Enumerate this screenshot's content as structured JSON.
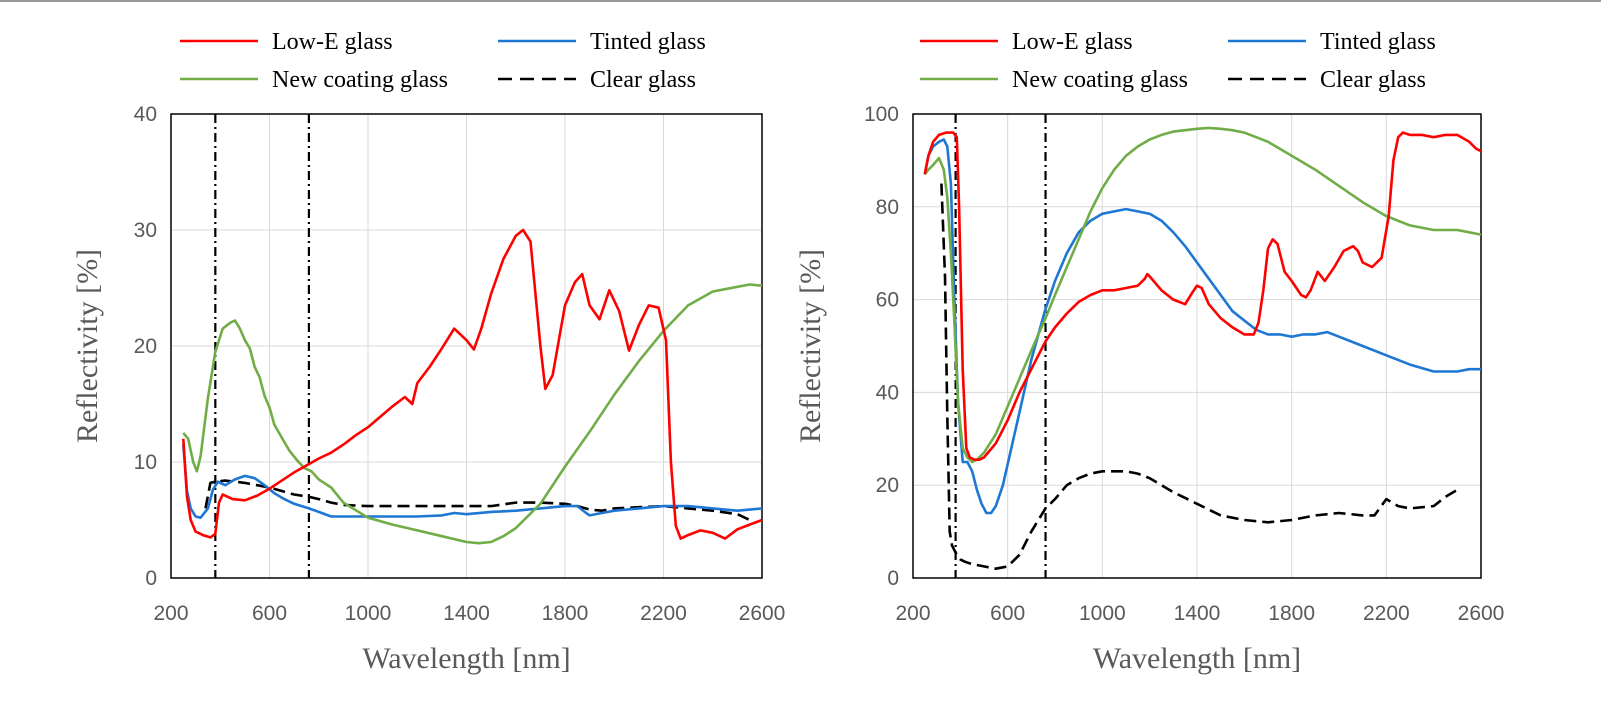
{
  "chart_data": [
    {
      "type": "line",
      "xlabel": "Wavelength [nm]",
      "ylabel": "Reflectivity [%]",
      "xlim": [
        200,
        2600
      ],
      "ylim": [
        0,
        40
      ],
      "xticks": [
        "200",
        "600",
        "1000",
        "1400",
        "1800",
        "2200",
        "2600"
      ],
      "yticks": [
        "0",
        "10",
        "20",
        "30",
        "40"
      ],
      "grid": true,
      "legend_position": "top",
      "reference_lines_x": [
        380,
        760
      ],
      "series": [
        {
          "name": "Low-E glass",
          "color": "#ff0000",
          "dash": "solid",
          "x": [
            250,
            265,
            280,
            300,
            330,
            360,
            380,
            395,
            410,
            450,
            500,
            550,
            600,
            650,
            700,
            750,
            800,
            850,
            900,
            950,
            1000,
            1050,
            1100,
            1150,
            1180,
            1200,
            1250,
            1300,
            1350,
            1400,
            1430,
            1460,
            1500,
            1550,
            1600,
            1630,
            1660,
            1700,
            1720,
            1750,
            1800,
            1840,
            1870,
            1900,
            1940,
            1980,
            2020,
            2060,
            2100,
            2140,
            2180,
            2210,
            2230,
            2250,
            2270,
            2300,
            2350,
            2400,
            2450,
            2500,
            2550,
            2600
          ],
          "y": [
            12,
            7,
            5,
            4,
            3.7,
            3.5,
            3.8,
            6.5,
            7.2,
            6.8,
            6.7,
            7.1,
            7.7,
            8.4,
            9.1,
            9.7,
            10.3,
            10.8,
            11.5,
            12.3,
            13,
            13.9,
            14.8,
            15.6,
            15,
            16.8,
            18.2,
            19.8,
            21.5,
            20.5,
            19.7,
            21.5,
            24.5,
            27.5,
            29.5,
            30,
            29,
            20,
            16.3,
            17.5,
            23.5,
            25.5,
            26.2,
            23.5,
            22.3,
            24.8,
            23,
            19.6,
            21.8,
            23.5,
            23.3,
            20.5,
            10,
            4.5,
            3.4,
            3.7,
            4.1,
            3.9,
            3.4,
            4.2,
            4.6,
            5
          ]
        },
        {
          "name": "Tinted glass",
          "color": "#1f77d4",
          "dash": "solid",
          "x": [
            250,
            265,
            280,
            300,
            320,
            350,
            370,
            390,
            420,
            460,
            500,
            540,
            580,
            620,
            660,
            700,
            760,
            800,
            850,
            900,
            1000,
            1100,
            1200,
            1300,
            1350,
            1400,
            1500,
            1600,
            1700,
            1800,
            1850,
            1880,
            1900,
            1950,
            2000,
            2100,
            2200,
            2300,
            2400,
            2500,
            2550,
            2600
          ],
          "y": [
            11.5,
            7.5,
            6,
            5.3,
            5.2,
            6,
            7.6,
            8.3,
            8,
            8.5,
            8.8,
            8.6,
            8,
            7.3,
            6.8,
            6.4,
            6,
            5.7,
            5.3,
            5.3,
            5.3,
            5.3,
            5.3,
            5.4,
            5.6,
            5.5,
            5.7,
            5.8,
            6,
            6.2,
            6.2,
            5.7,
            5.4,
            5.6,
            5.8,
            6,
            6.2,
            6.2,
            6,
            5.8,
            5.9,
            6
          ]
        },
        {
          "name": "New coating glass",
          "color": "#70ad47",
          "dash": "solid",
          "x": [
            250,
            270,
            290,
            305,
            320,
            350,
            380,
            410,
            440,
            460,
            480,
            500,
            520,
            540,
            560,
            580,
            600,
            620,
            650,
            680,
            710,
            740,
            770,
            800,
            850,
            900,
            1000,
            1100,
            1200,
            1300,
            1400,
            1450,
            1500,
            1550,
            1600,
            1700,
            1800,
            1900,
            2000,
            2100,
            2200,
            2300,
            2400,
            2500,
            2550,
            2600
          ],
          "y": [
            12.5,
            12,
            10,
            9.2,
            10.5,
            15.5,
            19.5,
            21.5,
            22,
            22.2,
            21.5,
            20.5,
            19.8,
            18.2,
            17.3,
            15.7,
            14.7,
            13.2,
            12.1,
            11,
            10.2,
            9.5,
            9.2,
            8.5,
            7.8,
            6.5,
            5.2,
            4.6,
            4.1,
            3.6,
            3.1,
            3,
            3.1,
            3.6,
            4.3,
            6.4,
            9.6,
            12.6,
            15.8,
            18.7,
            21.3,
            23.5,
            24.7,
            25.1,
            25.3,
            25.2
          ]
        },
        {
          "name": "Clear glass",
          "color": "#000000",
          "dash": "dashed",
          "x": [
            340,
            360,
            380,
            420,
            460,
            500,
            550,
            600,
            650,
            700,
            760,
            800,
            850,
            900,
            1000,
            1100,
            1200,
            1300,
            1400,
            1500,
            1600,
            1700,
            1800,
            1850,
            1900,
            1950,
            2000,
            2100,
            2200,
            2300,
            2400,
            2500,
            2550
          ],
          "y": [
            6,
            8.2,
            8.3,
            8.4,
            8.3,
            8.2,
            8,
            7.8,
            7.5,
            7.2,
            7,
            6.8,
            6.5,
            6.3,
            6.2,
            6.2,
            6.2,
            6.2,
            6.2,
            6.2,
            6.5,
            6.5,
            6.4,
            6.2,
            5.9,
            5.8,
            6,
            6.1,
            6.2,
            6,
            5.8,
            5.5,
            5
          ]
        }
      ]
    },
    {
      "type": "line",
      "xlabel": "Wavelength [nm]",
      "ylabel": "Reflectivity [%]",
      "xlim": [
        200,
        2600
      ],
      "ylim": [
        0,
        100
      ],
      "xticks": [
        "200",
        "600",
        "1000",
        "1400",
        "1800",
        "2200",
        "2600"
      ],
      "yticks": [
        "0",
        "20",
        "40",
        "60",
        "80",
        "100"
      ],
      "grid": true,
      "legend_position": "top",
      "reference_lines_x": [
        380,
        760
      ],
      "series": [
        {
          "name": "Low-E glass",
          "color": "#ff0000",
          "dash": "solid",
          "x": [
            250,
            265,
            285,
            310,
            340,
            370,
            385,
            395,
            410,
            425,
            440,
            460,
            480,
            500,
            550,
            600,
            650,
            700,
            760,
            800,
            850,
            900,
            950,
            1000,
            1050,
            1100,
            1150,
            1180,
            1190,
            1200,
            1250,
            1300,
            1350,
            1380,
            1400,
            1420,
            1450,
            1500,
            1550,
            1600,
            1640,
            1660,
            1680,
            1700,
            1720,
            1740,
            1770,
            1800,
            1840,
            1860,
            1880,
            1910,
            1940,
            1980,
            2020,
            2060,
            2080,
            2100,
            2140,
            2180,
            2210,
            2230,
            2250,
            2270,
            2300,
            2350,
            2400,
            2450,
            2500,
            2550,
            2580,
            2600
          ],
          "y": [
            87,
            91,
            94,
            95.5,
            96,
            96,
            95,
            80,
            45,
            28,
            26,
            25.5,
            25.5,
            26,
            29,
            34,
            40,
            45,
            51,
            54,
            57,
            59.5,
            61,
            62,
            62,
            62.5,
            63,
            64.5,
            65.5,
            65,
            62,
            60,
            59,
            61.5,
            63,
            62.5,
            59,
            56,
            54,
            52.5,
            52.5,
            55,
            62,
            71,
            73,
            72,
            66,
            64,
            61,
            60.5,
            62,
            66,
            64,
            67,
            70.5,
            71.5,
            70.5,
            68,
            67,
            69,
            78,
            90,
            95,
            96,
            95.5,
            95.5,
            95,
            95.5,
            95.5,
            94,
            92.5,
            92
          ]
        },
        {
          "name": "Tinted glass",
          "color": "#1f77d4",
          "dash": "solid",
          "x": [
            250,
            265,
            285,
            310,
            330,
            345,
            360,
            375,
            390,
            410,
            430,
            450,
            470,
            490,
            510,
            530,
            550,
            580,
            620,
            660,
            700,
            760,
            800,
            850,
            900,
            950,
            1000,
            1050,
            1100,
            1150,
            1200,
            1250,
            1300,
            1350,
            1400,
            1450,
            1500,
            1550,
            1600,
            1650,
            1700,
            1750,
            1800,
            1850,
            1900,
            1950,
            2000,
            2100,
            2200,
            2300,
            2400,
            2500,
            2550,
            2600
          ],
          "y": [
            87,
            91,
            93,
            94,
            94.5,
            93,
            85,
            60,
            38,
            25,
            25,
            23,
            19,
            16,
            14,
            14,
            15.5,
            20,
            29,
            38,
            47,
            58,
            64,
            70,
            74.5,
            77,
            78.5,
            79,
            79.5,
            79,
            78.5,
            77,
            74.5,
            71.5,
            68,
            64.5,
            61,
            57.5,
            55.5,
            53.5,
            52.5,
            52.5,
            52,
            52.5,
            52.5,
            53,
            52,
            50,
            48,
            46,
            44.5,
            44.5,
            45,
            45
          ]
        },
        {
          "name": "New coating glass",
          "color": "#70ad47",
          "dash": "solid",
          "x": [
            250,
            265,
            285,
            310,
            330,
            345,
            360,
            375,
            390,
            410,
            430,
            450,
            470,
            500,
            550,
            600,
            650,
            700,
            760,
            800,
            850,
            900,
            950,
            1000,
            1050,
            1100,
            1150,
            1200,
            1250,
            1300,
            1350,
            1400,
            1450,
            1500,
            1550,
            1600,
            1700,
            1800,
            1900,
            2000,
            2100,
            2200,
            2300,
            2400,
            2500,
            2550,
            2600
          ],
          "y": [
            87,
            88,
            89,
            90.5,
            88,
            82,
            70,
            55,
            38,
            28,
            26,
            25,
            25.5,
            27,
            31,
            37,
            43,
            49,
            56,
            61,
            67,
            73,
            79,
            84,
            88,
            91,
            93,
            94.5,
            95.5,
            96.2,
            96.5,
            96.8,
            97,
            96.8,
            96.5,
            96,
            94,
            91,
            88,
            84.5,
            81,
            78,
            76,
            75,
            75,
            74.5,
            74
          ]
        },
        {
          "name": "Clear glass",
          "color": "#000000",
          "dash": "dashed",
          "x": [
            320,
            335,
            345,
            355,
            365,
            375,
            385,
            400,
            420,
            450,
            500,
            550,
            600,
            650,
            700,
            760,
            800,
            850,
            900,
            950,
            1000,
            1050,
            1100,
            1150,
            1200,
            1300,
            1400,
            1500,
            1600,
            1700,
            1800,
            1900,
            2000,
            2100,
            2150,
            2200,
            2250,
            2300,
            2400,
            2450,
            2500
          ],
          "y": [
            85,
            65,
            35,
            10,
            7,
            6,
            5,
            4,
            3.5,
            3,
            2.5,
            2,
            2.5,
            5,
            10,
            15,
            17,
            20,
            21.5,
            22.5,
            23,
            23,
            23,
            22.5,
            21.5,
            18.5,
            16,
            13.5,
            12.5,
            12,
            12.5,
            13.5,
            14,
            13.5,
            13.5,
            17,
            15.5,
            15,
            15.5,
            17.5,
            19
          ]
        }
      ]
    }
  ]
}
